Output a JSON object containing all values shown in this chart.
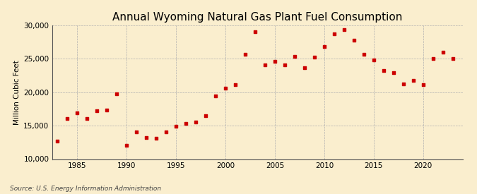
{
  "title": "Annual Wyoming Natural Gas Plant Fuel Consumption",
  "ylabel": "Million Cubic Feet",
  "source": "Source: U.S. Energy Information Administration",
  "background_color": "#faeece",
  "plot_bg_color": "#faeece",
  "marker_color": "#cc0000",
  "years": [
    1983,
    1984,
    1985,
    1986,
    1987,
    1988,
    1989,
    1990,
    1991,
    1992,
    1993,
    1994,
    1995,
    1996,
    1997,
    1998,
    1999,
    2000,
    2001,
    2002,
    2003,
    2004,
    2005,
    2006,
    2007,
    2008,
    2009,
    2010,
    2011,
    2012,
    2013,
    2014,
    2015,
    2016,
    2017,
    2018,
    2019,
    2020,
    2021,
    2022,
    2023
  ],
  "values": [
    12700,
    16100,
    16900,
    16100,
    17200,
    17300,
    19800,
    12100,
    14100,
    13200,
    13100,
    14100,
    14900,
    15300,
    15500,
    16500,
    19400,
    20600,
    21100,
    25700,
    29000,
    24100,
    24600,
    24100,
    25300,
    23700,
    25200,
    26800,
    28700,
    29300,
    27800,
    25700,
    24800,
    23200,
    22900,
    21200,
    21800,
    21100,
    25000,
    26000,
    25000
  ],
  "ylim": [
    10000,
    30000
  ],
  "yticks": [
    10000,
    15000,
    20000,
    25000,
    30000
  ],
  "xlim": [
    1982.5,
    2024
  ],
  "xticks": [
    1985,
    1990,
    1995,
    2000,
    2005,
    2010,
    2015,
    2020
  ],
  "title_fontsize": 11,
  "label_fontsize": 7.5,
  "tick_fontsize": 7.5,
  "source_fontsize": 6.5,
  "marker_size": 12
}
